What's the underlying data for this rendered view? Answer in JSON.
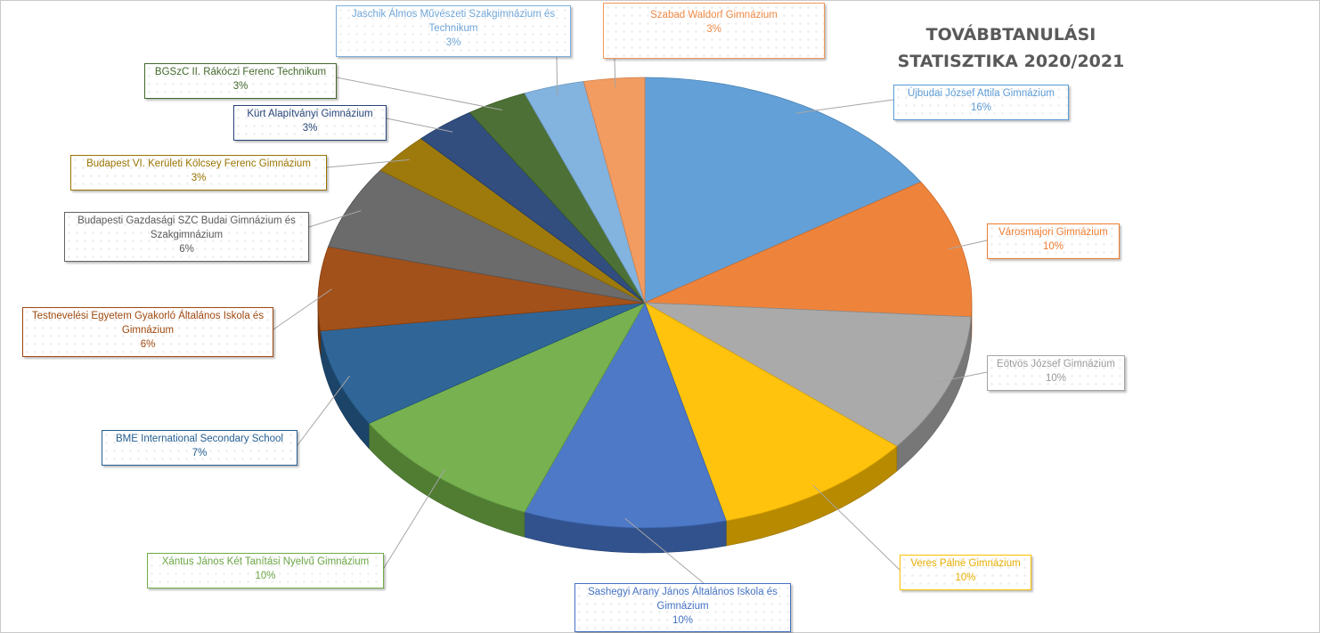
{
  "chart_data": {
    "type": "pie",
    "title_lines": [
      "TOVÁBBTANULÁSI",
      "STATISZTIKA 2020/2021"
    ],
    "slices": [
      {
        "label": "Újbudai József Attila Gimnázium",
        "pct": "16%",
        "value": 16,
        "color": "#5b9bd5"
      },
      {
        "label": "Városmajori Gimnázium",
        "pct": "10%",
        "value": 10,
        "color": "#ed7d31"
      },
      {
        "label": "Eötvös József Gimnázium",
        "pct": "10%",
        "value": 10,
        "color": "#a5a5a5"
      },
      {
        "label": "Veres Pálné Gimnázium",
        "pct": "10%",
        "value": 10,
        "color": "#ffc000"
      },
      {
        "label": "Sashegyi Arany János Általános Iskola és Gimnázium",
        "pct": "10%",
        "value": 10,
        "color": "#4472c4"
      },
      {
        "label": "Xántus János Két Tanítási Nyelvű Gimnázium",
        "pct": "10%",
        "value": 10,
        "color": "#70ad47"
      },
      {
        "label": "BME International Secondary School",
        "pct": "7%",
        "value": 7,
        "color": "#255e91"
      },
      {
        "label": "Testnevelési Egyetem Gyakorló Általános Iskola és Gimnázium",
        "pct": "6%",
        "value": 6,
        "color": "#9e480e"
      },
      {
        "label": "Budapesti Gazdasági SZC Budai Gimnázium és Szakgimnázium",
        "pct": "6%",
        "value": 6,
        "color": "#636363"
      },
      {
        "label": "Budapest VI. Kerületi Kölcsey Ferenc Gimnázium",
        "pct": "3%",
        "value": 3,
        "color": "#997300"
      },
      {
        "label": "Kürt Alapítványi Gimnázium",
        "pct": "3%",
        "value": 3,
        "color": "#264478"
      },
      {
        "label": "BGSzC II. Rákóczi Ferenc Technikum",
        "pct": "3%",
        "value": 3,
        "color": "#43682b"
      },
      {
        "label": "Jaschik Álmos Művészeti Szakgimnázium és Technikum",
        "pct": "3%",
        "value": 3,
        "color": "#7cafdd"
      },
      {
        "label": "Szabad Waldorf Gimnázium",
        "pct": "3%",
        "value": 3,
        "color": "#f1975a"
      }
    ],
    "legend": "none (data callouts)"
  }
}
